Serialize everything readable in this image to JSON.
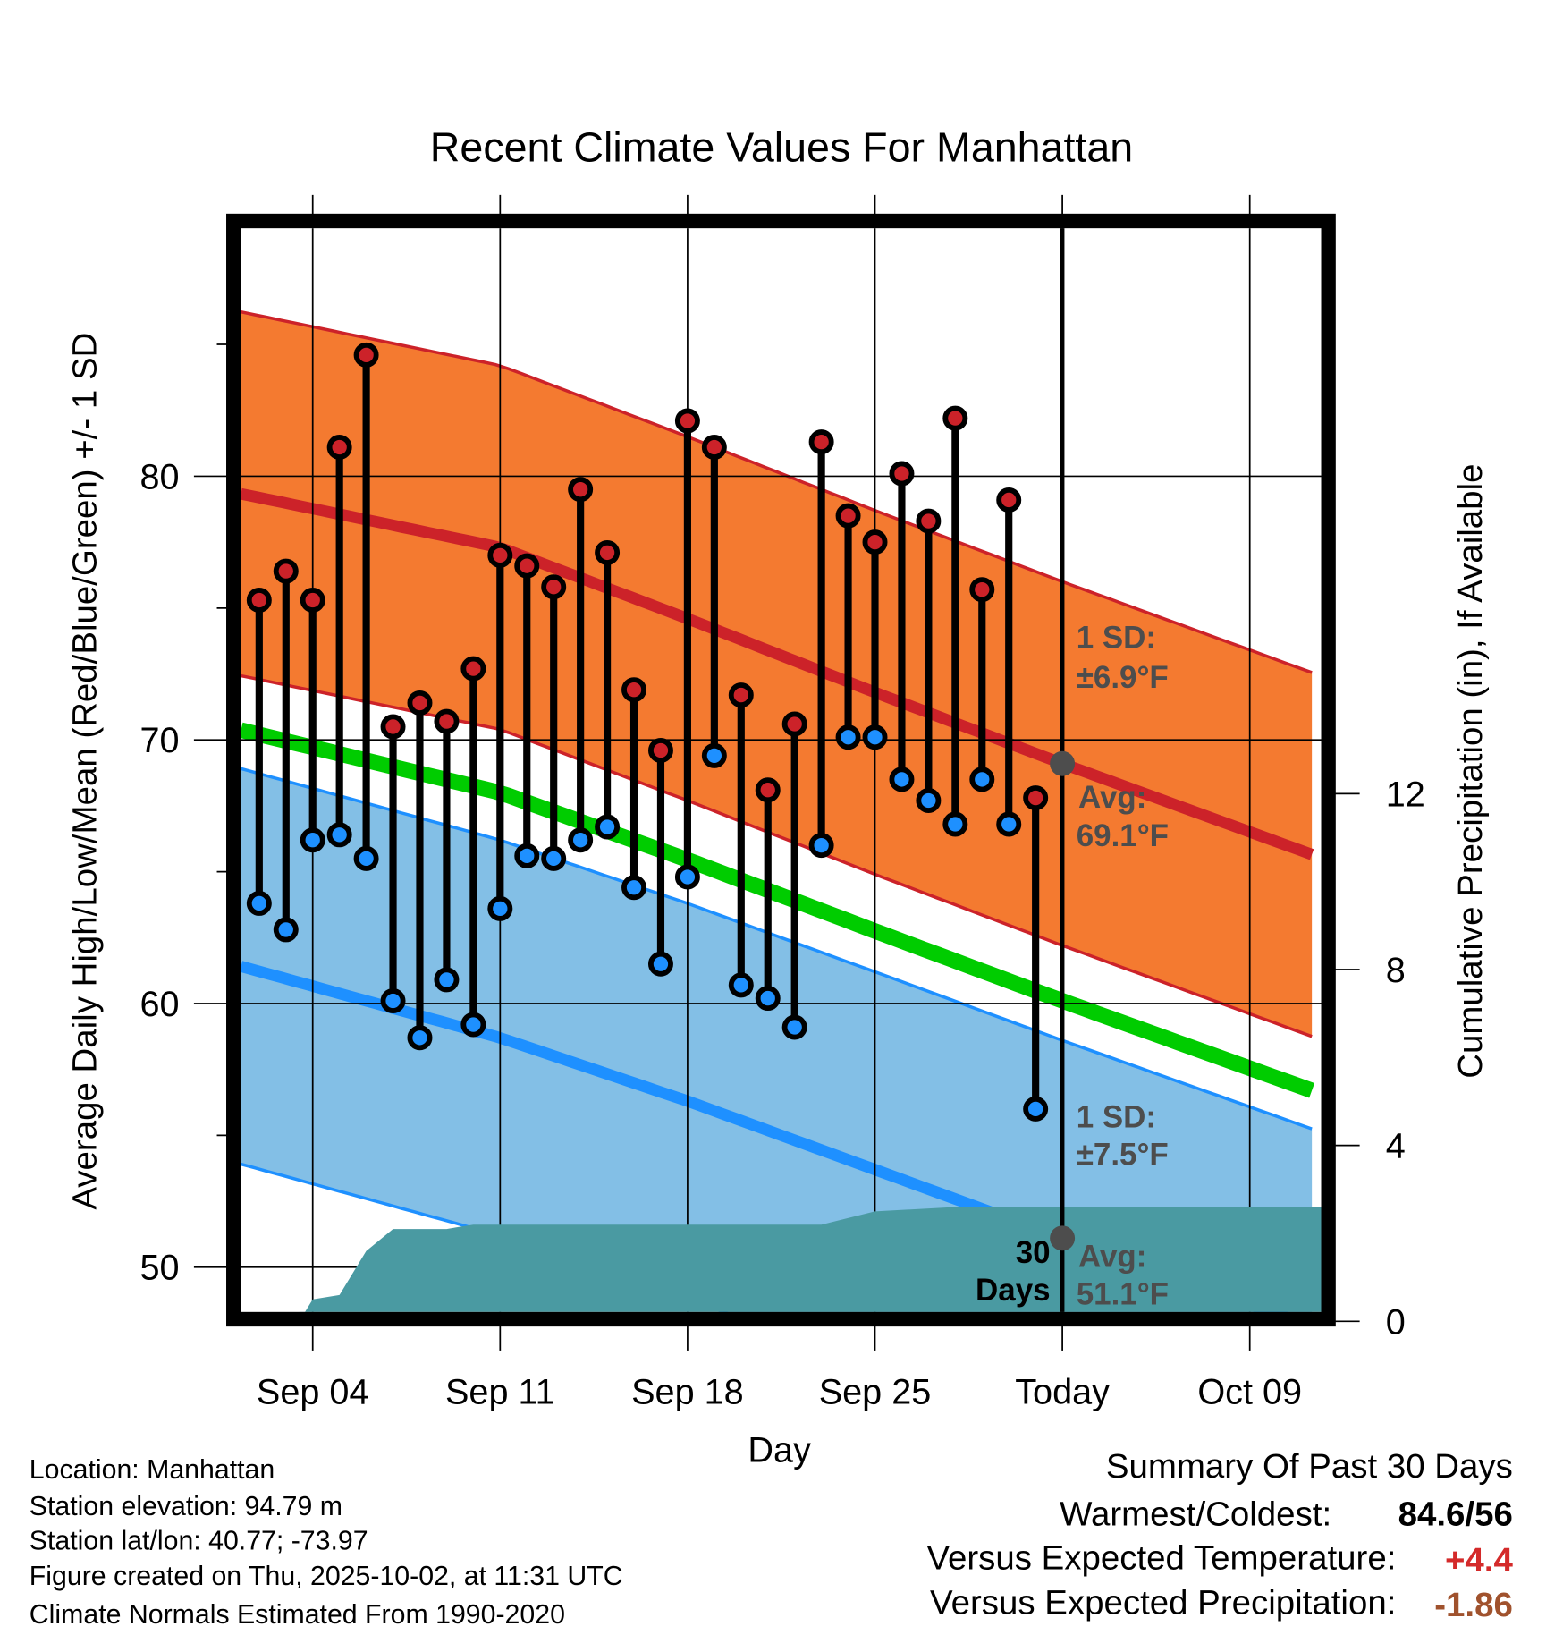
{
  "chart_data": {
    "type": "line",
    "title": "Recent Climate Values For Manhattan",
    "xlabel": "Day",
    "ylabel": "Average Daily High/Low/Mean (Red/Blue/Green) +/- 1 SD",
    "y2label": "Cumulative Precipitation (in), If Available",
    "ylim": [
      48.3,
      89.4
    ],
    "y2lim": [
      0,
      24.4
    ],
    "xlim_days_since_sep01": [
      0.32,
      40.7
    ],
    "x_ticks": [
      {
        "day": 3,
        "label": "Sep 04"
      },
      {
        "day": 10,
        "label": "Sep 11"
      },
      {
        "day": 17,
        "label": "Sep 18"
      },
      {
        "day": 24,
        "label": "Sep 25"
      },
      {
        "day": 31,
        "label": "Today"
      },
      {
        "day": 38,
        "label": "Oct 09"
      }
    ],
    "y_ticks": [
      50,
      60,
      70,
      80
    ],
    "y2_ticks": [
      0,
      4,
      8,
      12
    ],
    "today_day": 31,
    "observations": [
      {
        "date": "Sep 02",
        "day": 1,
        "high": 75.3,
        "low": 63.8
      },
      {
        "date": "Sep 03",
        "day": 2,
        "high": 76.4,
        "low": 62.8
      },
      {
        "date": "Sep 04",
        "day": 3,
        "high": 75.3,
        "low": 66.2
      },
      {
        "date": "Sep 05",
        "day": 4,
        "high": 81.1,
        "low": 66.4
      },
      {
        "date": "Sep 06",
        "day": 5,
        "high": 84.6,
        "low": 65.5
      },
      {
        "date": "Sep 07",
        "day": 6,
        "high": 70.5,
        "low": 60.1
      },
      {
        "date": "Sep 08",
        "day": 7,
        "high": 71.4,
        "low": 58.7
      },
      {
        "date": "Sep 09",
        "day": 8,
        "high": 70.7,
        "low": 60.9
      },
      {
        "date": "Sep 10",
        "day": 9,
        "high": 72.7,
        "low": 59.2
      },
      {
        "date": "Sep 11",
        "day": 10,
        "high": 77.0,
        "low": 63.6
      },
      {
        "date": "Sep 12",
        "day": 11,
        "high": 76.6,
        "low": 65.6
      },
      {
        "date": "Sep 13",
        "day": 12,
        "high": 75.8,
        "low": 65.5
      },
      {
        "date": "Sep 14",
        "day": 13,
        "high": 79.5,
        "low": 66.2
      },
      {
        "date": "Sep 15",
        "day": 14,
        "high": 77.1,
        "low": 66.7
      },
      {
        "date": "Sep 16",
        "day": 15,
        "high": 71.9,
        "low": 64.4
      },
      {
        "date": "Sep 17",
        "day": 16,
        "high": 69.6,
        "low": 61.5
      },
      {
        "date": "Sep 18",
        "day": 17,
        "high": 82.1,
        "low": 64.8
      },
      {
        "date": "Sep 19",
        "day": 18,
        "high": 81.1,
        "low": 69.4
      },
      {
        "date": "Sep 20",
        "day": 19,
        "high": 71.7,
        "low": 60.7
      },
      {
        "date": "Sep 21",
        "day": 20,
        "high": 68.1,
        "low": 60.2
      },
      {
        "date": "Sep 22",
        "day": 21,
        "high": 70.6,
        "low": 59.1
      },
      {
        "date": "Sep 23",
        "day": 22,
        "high": 81.3,
        "low": 66.0
      },
      {
        "date": "Sep 24",
        "day": 23,
        "high": 78.5,
        "low": 70.1
      },
      {
        "date": "Sep 25",
        "day": 24,
        "high": 77.5,
        "low": 70.1
      },
      {
        "date": "Sep 26",
        "day": 25,
        "high": 80.1,
        "low": 68.5
      },
      {
        "date": "Sep 27",
        "day": 26,
        "high": 78.3,
        "low": 67.7
      },
      {
        "date": "Sep 28",
        "day": 27,
        "high": 82.2,
        "low": 66.8
      },
      {
        "date": "Sep 29",
        "day": 28,
        "high": 75.7,
        "low": 68.5
      },
      {
        "date": "Sep 30",
        "day": 29,
        "high": 79.1,
        "low": 66.8
      },
      {
        "date": "Oct 01",
        "day": 30,
        "high": 67.8,
        "low": 56.0
      }
    ],
    "normals": {
      "days": [
        0,
        10,
        17,
        24,
        31,
        41
      ],
      "high": [
        79.4,
        77.3,
        74.6,
        71.8,
        69.1,
        65.4
      ],
      "low": [
        61.5,
        58.7,
        56.3,
        53.7,
        51.1,
        47.5
      ],
      "high_sd": 6.9,
      "low_sd": 7.5
    },
    "precip_cumulative": {
      "days": [
        2.5,
        3.0,
        4.0,
        5.0,
        6.0,
        8.0,
        9.0,
        22.0,
        24.0,
        27.0,
        40.7
      ],
      "inches": [
        0,
        0.5,
        0.6,
        1.6,
        2.1,
        2.1,
        2.2,
        2.2,
        2.5,
        2.6,
        2.6
      ]
    },
    "annotations": {
      "high_sd_line1": "1 SD:",
      "high_sd_line2": "±6.9°F",
      "high_avg_line1": "Avg:",
      "high_avg_line2": "69.1°F",
      "low_sd_line1": "1 SD:",
      "low_sd_line2": "±7.5°F",
      "low_avg_line1": "Avg:",
      "low_avg_line2": "51.1°F",
      "days_line1": "30",
      "days_line2": "Days"
    },
    "colors": {
      "high_band": "#f47a30",
      "high_line": "#cc2229",
      "low_band": "#83bfe6",
      "low_line": "#1e90ff",
      "mean_line": "#00cc00",
      "precip": "#4a9aa2",
      "marker_high": "#cc2229",
      "marker_low": "#1e90ff"
    }
  },
  "footer": {
    "location": "Location: Manhattan",
    "elevation": "Station elevation: 94.79 m",
    "latlon": "Station lat/lon: 40.77; -73.97",
    "created": "Figure created on Thu, 2025-10-02, at 11:31 UTC",
    "normals": "Climate Normals Estimated From 1990-2020"
  },
  "summary": {
    "title": "Summary Of Past 30 Days",
    "warmest_label": "Warmest/Coldest:",
    "warmest_value": "84.6/56",
    "temp_label": "Versus Expected Temperature:",
    "temp_value": "+4.4",
    "temp_color": "#d42a2a",
    "precip_label": "Versus Expected Precipitation:",
    "precip_value": "-1.86",
    "precip_color": "#a0522d"
  }
}
